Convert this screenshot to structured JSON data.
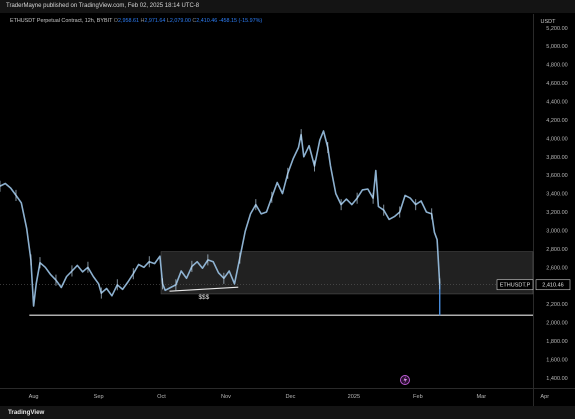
{
  "header": {
    "published_text": "TraderMayne published on TradingView.com, Feb 02, 2025 18:14 UTC-8"
  },
  "legend": {
    "symbol_text": "ETHUSDT Perpetual Contract, 12h, BYBIT",
    "o_label": "O",
    "o_value": "2,958.61",
    "h_label": "H",
    "h_value": "2,971.64",
    "l_label": "L",
    "l_value": "2,079.00",
    "c_label": "C",
    "c_value": "2,410.46",
    "change": "-458.15 (-15.97%)"
  },
  "footer": {
    "logo_text": "TradingView"
  },
  "chart_data": {
    "type": "line",
    "currency_label": "USDT",
    "ylim": [
      1300,
      5350
    ],
    "y_ticks": [
      5200,
      5000,
      4800,
      4600,
      4400,
      4200,
      4000,
      3800,
      3600,
      3400,
      3200,
      3000,
      2800,
      2600,
      2400,
      2200,
      2000,
      1800,
      1600,
      1400
    ],
    "y_tick_labels": [
      "5,200.00",
      "5,000.00",
      "4,800.00",
      "4,600.00",
      "4,400.00",
      "4,200.00",
      "4,000.00",
      "3,800.00",
      "3,600.00",
      "3,400.00",
      "3,200.00",
      "3,000.00",
      "2,800.00",
      "2,600.00",
      "2,400.00",
      "2,200.00",
      "2,000.00",
      "1,800.00",
      "1,600.00",
      "1,400.00"
    ],
    "x_labels": [
      "Aug",
      "Sep",
      "Oct",
      "Nov",
      "Dec",
      "2025",
      "Feb",
      "Mar",
      "Apr"
    ],
    "x_label_positions": [
      0.063,
      0.185,
      0.303,
      0.424,
      0.545,
      0.664,
      0.784,
      0.903,
      1.022
    ],
    "series": [
      {
        "points": [
          [
            0.0,
            3480
          ],
          [
            0.01,
            3510
          ],
          [
            0.02,
            3460
          ],
          [
            0.03,
            3380
          ],
          [
            0.04,
            3300
          ],
          [
            0.05,
            3020
          ],
          [
            0.058,
            2680
          ],
          [
            0.063,
            2180
          ],
          [
            0.068,
            2420
          ],
          [
            0.075,
            2650
          ],
          [
            0.085,
            2600
          ],
          [
            0.095,
            2520
          ],
          [
            0.105,
            2460
          ],
          [
            0.115,
            2380
          ],
          [
            0.125,
            2500
          ],
          [
            0.135,
            2560
          ],
          [
            0.145,
            2620
          ],
          [
            0.155,
            2550
          ],
          [
            0.165,
            2600
          ],
          [
            0.175,
            2500
          ],
          [
            0.185,
            2420
          ],
          [
            0.19,
            2320
          ],
          [
            0.2,
            2370
          ],
          [
            0.21,
            2290
          ],
          [
            0.22,
            2410
          ],
          [
            0.23,
            2360
          ],
          [
            0.24,
            2440
          ],
          [
            0.25,
            2530
          ],
          [
            0.26,
            2630
          ],
          [
            0.27,
            2600
          ],
          [
            0.28,
            2660
          ],
          [
            0.29,
            2640
          ],
          [
            0.3,
            2720
          ],
          [
            0.305,
            2420
          ],
          [
            0.31,
            2350
          ],
          [
            0.32,
            2380
          ],
          [
            0.33,
            2410
          ],
          [
            0.34,
            2560
          ],
          [
            0.35,
            2480
          ],
          [
            0.36,
            2610
          ],
          [
            0.37,
            2660
          ],
          [
            0.38,
            2590
          ],
          [
            0.39,
            2680
          ],
          [
            0.4,
            2660
          ],
          [
            0.41,
            2540
          ],
          [
            0.42,
            2480
          ],
          [
            0.43,
            2560
          ],
          [
            0.44,
            2420
          ],
          [
            0.45,
            2700
          ],
          [
            0.46,
            2990
          ],
          [
            0.47,
            3180
          ],
          [
            0.48,
            3280
          ],
          [
            0.49,
            3180
          ],
          [
            0.5,
            3200
          ],
          [
            0.51,
            3360
          ],
          [
            0.52,
            3520
          ],
          [
            0.53,
            3400
          ],
          [
            0.54,
            3620
          ],
          [
            0.55,
            3780
          ],
          [
            0.56,
            3900
          ],
          [
            0.565,
            4040
          ],
          [
            0.57,
            3800
          ],
          [
            0.58,
            3920
          ],
          [
            0.59,
            3700
          ],
          [
            0.6,
            3980
          ],
          [
            0.607,
            4080
          ],
          [
            0.615,
            3900
          ],
          [
            0.62,
            3700
          ],
          [
            0.63,
            3400
          ],
          [
            0.64,
            3280
          ],
          [
            0.65,
            3340
          ],
          [
            0.66,
            3280
          ],
          [
            0.67,
            3350
          ],
          [
            0.68,
            3440
          ],
          [
            0.69,
            3450
          ],
          [
            0.7,
            3350
          ],
          [
            0.705,
            3650
          ],
          [
            0.71,
            3260
          ],
          [
            0.72,
            3220
          ],
          [
            0.73,
            3120
          ],
          [
            0.74,
            3150
          ],
          [
            0.75,
            3200
          ],
          [
            0.76,
            3380
          ],
          [
            0.77,
            3350
          ],
          [
            0.78,
            3280
          ],
          [
            0.79,
            3320
          ],
          [
            0.8,
            3200
          ],
          [
            0.81,
            3180
          ],
          [
            0.815,
            2980
          ],
          [
            0.82,
            2900
          ],
          [
            0.825,
            2420
          ]
        ]
      }
    ],
    "liquidity_box": {
      "x_start": 0.302,
      "x_end": 1.0,
      "y_low": 2310,
      "y_high": 2770
    },
    "support_line": {
      "x_start": 0.055,
      "x_end": 1.0,
      "y": 2080
    },
    "current_price_line": 2410.46,
    "range_underline": {
      "x_start": 0.318,
      "x_end": 0.447,
      "y": 2340
    },
    "annotation": "$$$",
    "price_label": "ETHUSDT.P",
    "price_value": "2,410.46",
    "gridlines": false
  }
}
